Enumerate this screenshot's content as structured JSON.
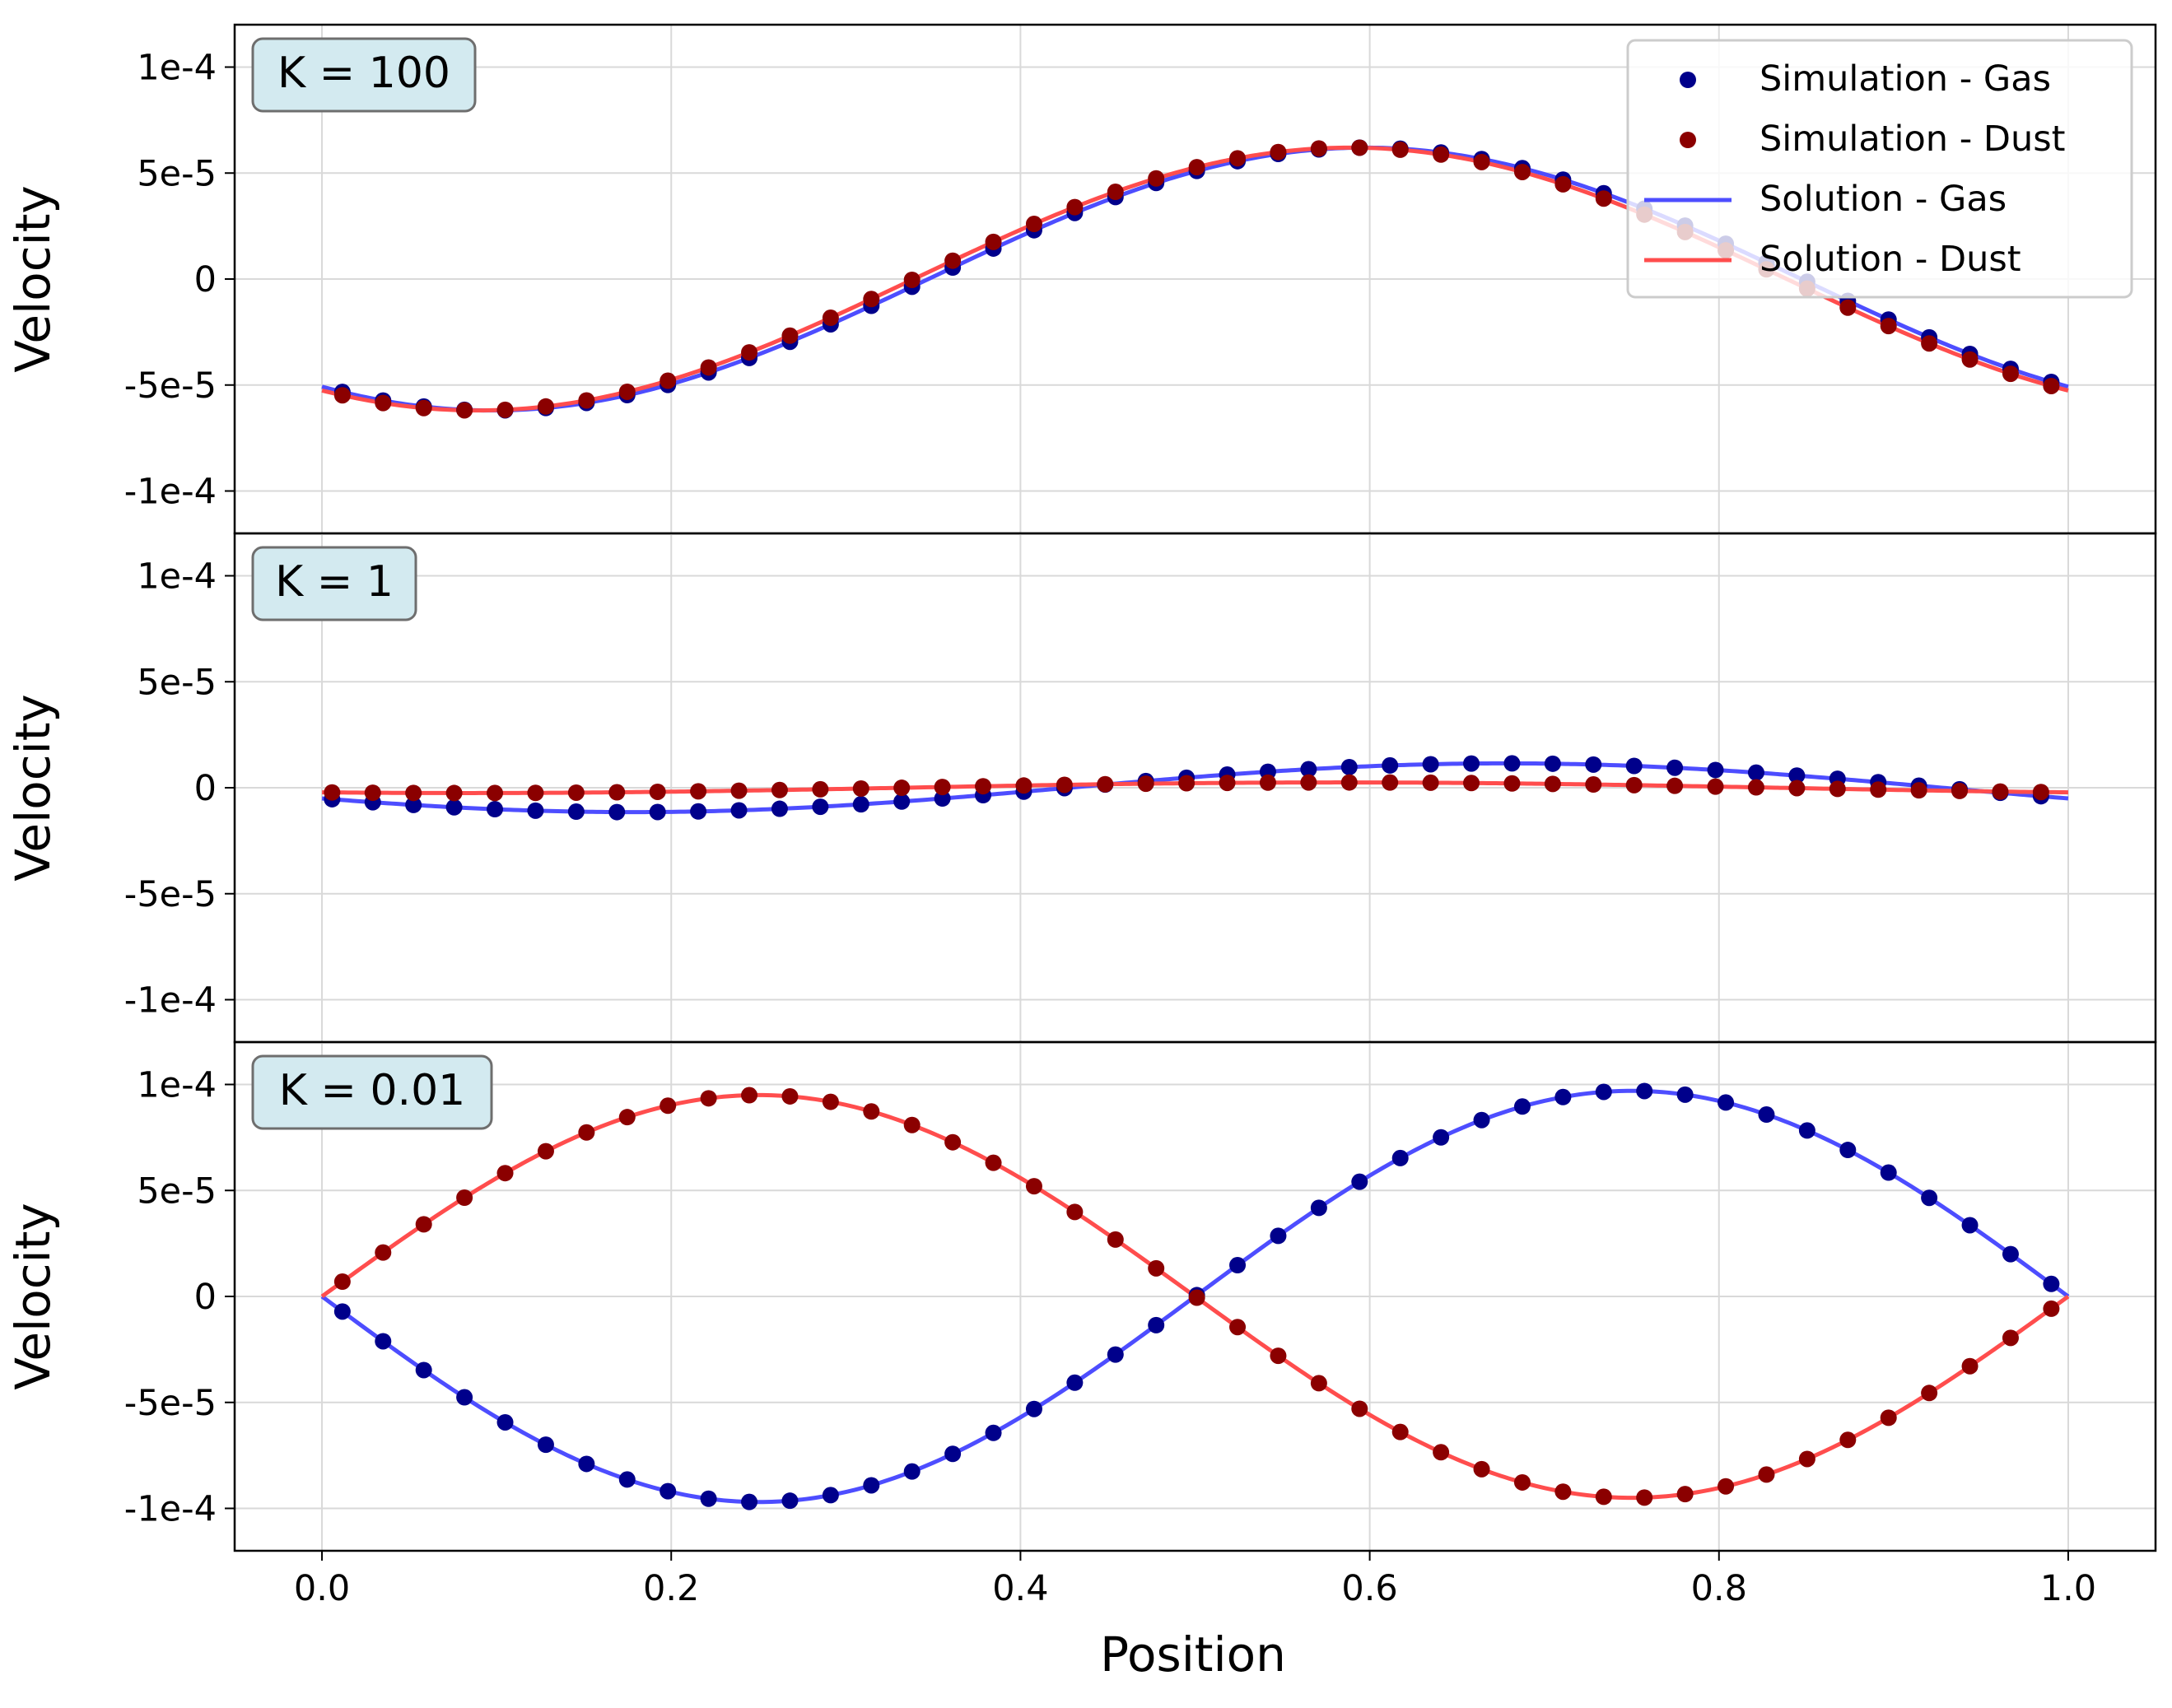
{
  "figure": {
    "xlabel": "Position",
    "ylabel": "Velocity",
    "legend": {
      "placement": "top-right",
      "entries": [
        {
          "label": "Simulation - Gas",
          "kind": "marker",
          "color": "#00008b"
        },
        {
          "label": "Simulation - Dust",
          "kind": "marker",
          "color": "#8b0000"
        },
        {
          "label": "Solution - Gas",
          "kind": "line",
          "color": "#4d4dff"
        },
        {
          "label": "Solution - Dust",
          "kind": "line",
          "color": "#ff4d4d"
        }
      ]
    },
    "colors": {
      "sim_gas": "#00008b",
      "sim_dust": "#8b0000",
      "sol_gas": "#4d4dff",
      "sol_dust": "#ff4d4d",
      "box_fill": "#d3eaf0",
      "grid": "#d9d9d9"
    }
  },
  "chart_data": [
    {
      "type": "line",
      "title": "K = 100",
      "xlabel": "",
      "ylabel": "Velocity",
      "xlim": [
        -0.05,
        1.05
      ],
      "ylim": [
        -0.00012,
        0.00012
      ],
      "xticks": [
        0.0,
        0.2,
        0.4,
        0.6,
        0.8,
        1.0
      ],
      "xtick_labels": [
        "0.0",
        "0.2",
        "0.4",
        "0.6",
        "0.8",
        "1.0"
      ],
      "yticks": [
        -0.0001,
        -5e-05,
        0,
        5e-05,
        0.0001
      ],
      "ytick_labels": [
        "-1e-4",
        "-5e-5",
        "0",
        "5e-5",
        "1e-4"
      ],
      "grid": true,
      "solution": {
        "gas": {
          "amplitude": 6.2e-05,
          "phase_deg": -125,
          "offset_deg": 0
        },
        "dust": {
          "amplitude": 6.2e-05,
          "phase_deg": -125,
          "offset_deg": 3
        }
      },
      "simulation": {
        "x_start": 0.0117,
        "x_step": 0.0233,
        "count": 43,
        "gas": {
          "amplitude": 6.2e-05,
          "phase_deg": -125,
          "offset_deg": 0
        },
        "dust": {
          "amplitude": 6.2e-05,
          "phase_deg": -125,
          "offset_deg": 3
        }
      }
    },
    {
      "type": "line",
      "title": "K = 1",
      "xlabel": "",
      "ylabel": "Velocity",
      "xlim": [
        -0.05,
        1.05
      ],
      "ylim": [
        -0.00012,
        0.00012
      ],
      "xticks": [
        0.0,
        0.2,
        0.4,
        0.6,
        0.8,
        1.0
      ],
      "xtick_labels": [
        "0.0",
        "0.2",
        "0.4",
        "0.6",
        "0.8",
        "1.0"
      ],
      "yticks": [
        -0.0001,
        -5e-05,
        0,
        5e-05,
        0.0001
      ],
      "ytick_labels": [
        "-1e-4",
        "-5e-5",
        "0",
        "5e-5",
        "1e-4"
      ],
      "grid": true,
      "solution": {
        "gas": {
          "amplitude": 1.15e-05,
          "phase_deg": 206
        },
        "dust": {
          "amplitude": 2.5e-06,
          "phase_deg": 240
        }
      },
      "simulation": {
        "x_start": 0.0058,
        "x_step": 0.0233,
        "count": 43,
        "gas": {
          "amplitude": 1.15e-05,
          "phase_deg": 206
        },
        "dust": {
          "amplitude": 2.5e-06,
          "phase_deg": 240
        }
      }
    },
    {
      "type": "line",
      "title": "K = 0.01",
      "xlabel": "Position",
      "ylabel": "Velocity",
      "xlim": [
        -0.05,
        1.05
      ],
      "ylim": [
        -0.00012,
        0.00012
      ],
      "xticks": [
        0.0,
        0.2,
        0.4,
        0.6,
        0.8,
        1.0
      ],
      "xtick_labels": [
        "0.0",
        "0.2",
        "0.4",
        "0.6",
        "0.8",
        "1.0"
      ],
      "yticks": [
        -0.0001,
        -5e-05,
        0,
        5e-05,
        0.0001
      ],
      "ytick_labels": [
        "-1e-4",
        "-5e-5",
        "0",
        "5e-5",
        "1e-4"
      ],
      "grid": true,
      "solution": {
        "gas": {
          "amplitude": 9.7e-05,
          "phase_deg": 180
        },
        "dust": {
          "amplitude": 9.5e-05,
          "phase_deg": 0
        }
      },
      "simulation": {
        "x_start": 0.0117,
        "x_step": 0.0233,
        "count": 43,
        "gas": {
          "amplitude": 9.7e-05,
          "phase_deg": 180
        },
        "dust": {
          "amplitude": 9.5e-05,
          "phase_deg": 0
        }
      }
    }
  ]
}
